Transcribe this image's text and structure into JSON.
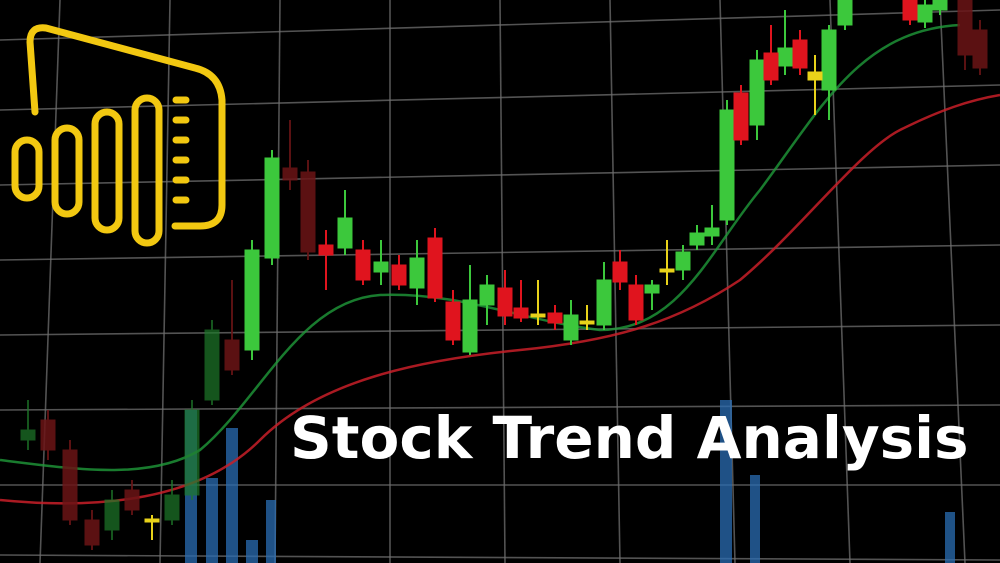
{
  "title": "Stock Trend Analysis"
}
